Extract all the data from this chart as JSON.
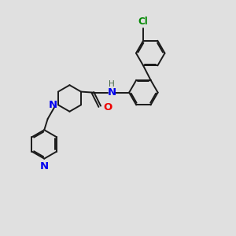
{
  "bg_color": "#e0e0e0",
  "bond_color": "#1a1a1a",
  "N_color": "#0000ee",
  "O_color": "#ee0000",
  "Cl_color": "#008800",
  "H_color": "#555555",
  "lw": 1.4,
  "dbo": 0.055,
  "fs": 8.5,
  "r": 0.62,
  "fig_xlim": [
    0,
    10
  ],
  "fig_ylim": [
    0,
    10
  ]
}
